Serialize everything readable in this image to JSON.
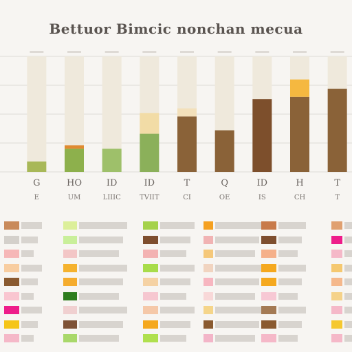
{
  "title": "Bettuor Bimcic nonchan mecua",
  "colors": {
    "background": "#f7f5f2",
    "grid": "#dedad5",
    "track": "#efe9dc",
    "legend_text_box": "#d8d4cf"
  },
  "chart_data": {
    "type": "bar",
    "title": "Bettuor Bimcic nonchan mecua",
    "xlabel": "",
    "ylabel": "",
    "ylim": [
      0,
      100
    ],
    "grid": true,
    "legend_position": "bottom",
    "categories": [
      "G",
      "HO",
      "ID",
      "ID",
      "T",
      "Q",
      "ID",
      "H",
      "T"
    ],
    "sublabels": [
      "E",
      "UM",
      "LIIIC",
      "TVIIT",
      "CI",
      "OE",
      "IS",
      "CH",
      "T"
    ],
    "series": [
      {
        "values": [
          9,
          20,
          20,
          33,
          48,
          36,
          63,
          65,
          72
        ],
        "colors": [
          "#a8b858",
          "#8db04c",
          "#9ec06a",
          "#8bb05a",
          "#8a6238",
          "#8a6238",
          "#7d4f2c",
          "#8a6238",
          "#8a6238"
        ]
      },
      {
        "values": [
          0,
          3,
          0,
          18,
          7,
          0,
          0,
          15,
          0
        ],
        "colors": [
          "#eaa640",
          "#e08a30",
          "#f0d8a0",
          "#f2dca6",
          "#f3e0bb",
          "#eaa640",
          "#eaa640",
          "#f5b840",
          "#eaa640"
        ]
      }
    ]
  },
  "legend": {
    "columns": [
      {
        "entries": [
          {
            "color": "#c98a5a"
          },
          {
            "color": "#d4d0cb"
          },
          {
            "color": "#f6b7b7"
          },
          {
            "color": "#f8cda0"
          },
          {
            "color": "#8a5a30"
          },
          {
            "color": "#f9c6d0"
          },
          {
            "color": "#ee1d8a"
          },
          {
            "color": "#f5c518"
          },
          {
            "color": "#f5b8c8"
          }
        ]
      },
      {
        "entries": [
          {
            "color": "#dcef9a"
          },
          {
            "color": "#c9ef9a"
          },
          {
            "color": "#f3c6c6"
          },
          {
            "color": "#f5b22e"
          },
          {
            "color": "#f5ac2e"
          },
          {
            "color": "#2e7d1e"
          },
          {
            "color": "#f0d0d0"
          },
          {
            "color": "#7e5236"
          },
          {
            "color": "#a9d86a"
          }
        ]
      },
      {
        "entries": [
          {
            "color": "#a5d24a"
          },
          {
            "color": "#7e4e2e"
          },
          {
            "color": "#f3b2b2"
          },
          {
            "color": "#a8dc4a"
          },
          {
            "color": "#f5d2a4"
          },
          {
            "color": "#f6c7d0"
          },
          {
            "color": "#f5c8a8"
          },
          {
            "color": "#f5a81e"
          },
          {
            "color": "#b0e04e"
          }
        ]
      },
      {
        "entries": [
          {
            "color": "#f5a020"
          },
          {
            "color": "#f1b3b3"
          },
          {
            "color": "#f5c87a"
          },
          {
            "color": "#f1d4c0"
          },
          {
            "color": "#f7b6c0"
          },
          {
            "color": "#f8d8d8"
          },
          {
            "color": "#f5d58a"
          },
          {
            "color": "#8a5a30"
          },
          {
            "color": "#f3b5c8"
          }
        ]
      },
      {
        "entries": [
          {
            "color": "#c87a4a"
          },
          {
            "color": "#7e4e2e"
          },
          {
            "color": "#f5b08a"
          },
          {
            "color": "#f5a81e"
          },
          {
            "color": "#f5a81e"
          },
          {
            "color": "#f7c8d4"
          },
          {
            "color": "#a47a54"
          },
          {
            "color": "#8a5a30"
          },
          {
            "color": "#f5b8c8"
          }
        ]
      },
      {
        "entries": [
          {
            "color": "#e0a070"
          },
          {
            "color": "#ee1d8a"
          },
          {
            "color": "#f5b8c8"
          },
          {
            "color": "#f5c870"
          },
          {
            "color": "#f5b88c"
          },
          {
            "color": "#f5d28a"
          },
          {
            "color": "#f5b8c8"
          },
          {
            "color": "#f5c830"
          },
          {
            "color": "#f5b8c8"
          }
        ]
      }
    ]
  }
}
